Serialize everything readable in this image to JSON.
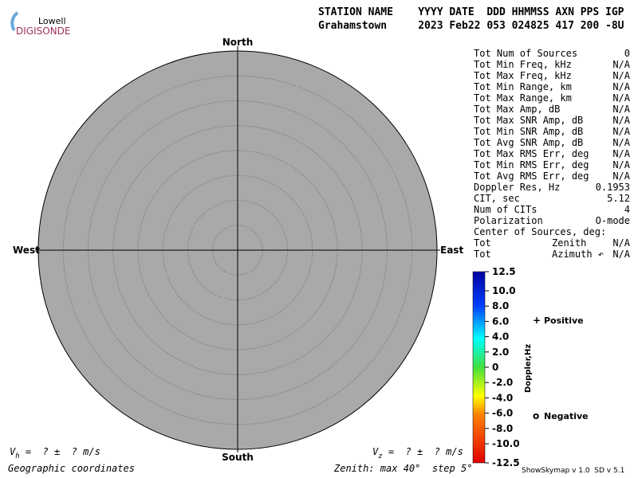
{
  "logo": {
    "line1": "Lowell",
    "line2": "DIGISONDE"
  },
  "header": {
    "labels": "STATION NAME    YYYY DATE  DDD HHMMSS AXN PPS IGP",
    "values": "Grahamstown     2023 Feb22 053 024825 417 200 -8U"
  },
  "chart_data": {
    "type": "polar",
    "north": "North",
    "south": "South",
    "east": "East",
    "west": "West",
    "zenith_max": 40,
    "zenith_step": 5,
    "colorbar": {
      "title": "Doppler,Hz",
      "lim": [
        -12.5,
        12.5
      ],
      "ticks": [
        12.5,
        {
          "value": 10,
          "label": "10.0"
        },
        {
          "value": 8,
          "label": "8.0"
        },
        {
          "value": 6,
          "label": "6.0"
        },
        {
          "value": 4,
          "label": "4.0"
        },
        {
          "value": 2,
          "label": "2.0"
        },
        0,
        {
          "value": -2,
          "label": "-2.0"
        },
        {
          "value": -4,
          "label": "-4.0"
        },
        {
          "value": -6,
          "label": "-6.0"
        },
        {
          "value": -8,
          "label": "-8.0"
        },
        {
          "value": -10,
          "label": "-10.0"
        },
        -12.5
      ]
    },
    "legend": [
      {
        "marker": "+",
        "name": "Positive",
        "color": "#0000cc"
      },
      {
        "marker": "o",
        "name": "Negative",
        "color": "#cc0000"
      }
    ]
  },
  "stats": [
    [
      "Tot Num of Sources",
      "0"
    ],
    [
      "Tot Min Freq, kHz",
      "N/A"
    ],
    [
      "Tot Max Freq, kHz",
      "N/A"
    ],
    [
      "Tot Min Range, km",
      "N/A"
    ],
    [
      "Tot Max Range, km",
      "N/A"
    ],
    [
      "Tot Max Amp, dB",
      "N/A"
    ],
    [
      "Tot Max SNR Amp, dB",
      "N/A"
    ],
    [
      "Tot Min SNR Amp, dB",
      "N/A"
    ],
    [
      "Tot Avg SNR Amp, dB",
      "N/A"
    ],
    [
      "Tot Max RMS Err, deg",
      "N/A"
    ],
    [
      "Tot Min RMS Err, deg",
      "N/A"
    ],
    [
      "Tot Avg RMS Err, deg",
      "N/A"
    ],
    [
      "Doppler Res, Hz",
      "0.1953"
    ],
    [
      "CIT, sec",
      "5.12"
    ],
    [
      "Num of CITs",
      "4"
    ],
    [
      "Polarization",
      "O-mode"
    ],
    [
      "Center of Sources, deg:",
      ""
    ],
    [
      "Tot",
      "N/A",
      "Zenith"
    ],
    [
      "Tot",
      "N/A",
      "Azimuth ↶"
    ]
  ],
  "footer": {
    "vh": {
      "symbol": "V",
      "sub": "h",
      "text": " =  ? ±  ? m/s"
    },
    "vz": {
      "symbol": "V",
      "sub": "z",
      "text": " =  ? ±  ? m/s"
    },
    "coords": "Geographic coordinates",
    "zenith_label": "Zenith: max ",
    "degree": "°",
    "step_label": "  step ",
    "version": "ShowSkymap v 1.0  SD v 5.1"
  }
}
